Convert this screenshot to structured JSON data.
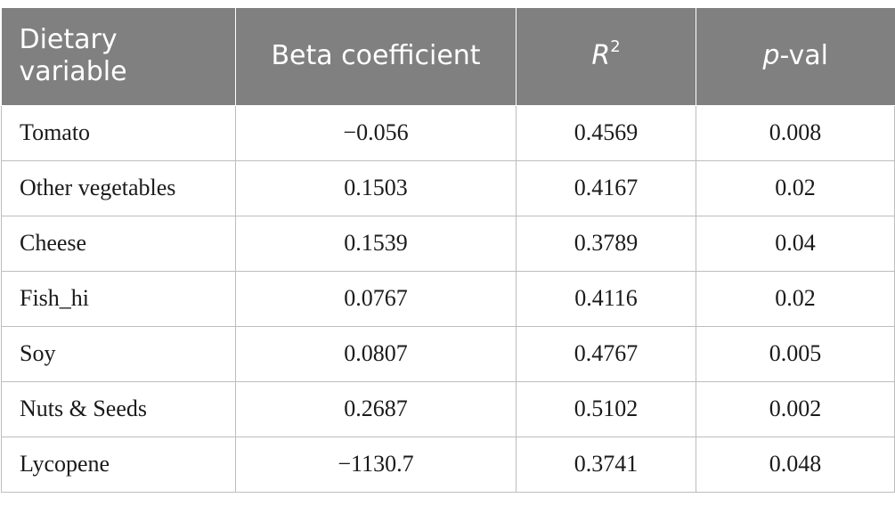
{
  "table": {
    "headers": {
      "dietary_variable": "Dietary variable",
      "beta_coefficient": "Beta coefficient",
      "r2_base": "R",
      "r2_sup": "2",
      "pval_italic": "p",
      "pval_rest": "-val"
    },
    "rows": [
      {
        "variable": "Tomato",
        "beta": "−0.056",
        "r2": "0.4569",
        "pval": "0.008"
      },
      {
        "variable": "Other vegetables",
        "beta": "0.1503",
        "r2": "0.4167",
        "pval": "0.02"
      },
      {
        "variable": "Cheese",
        "beta": "0.1539",
        "r2": "0.3789",
        "pval": "0.04"
      },
      {
        "variable": "Fish_hi",
        "beta": "0.0767",
        "r2": "0.4116",
        "pval": "0.02"
      },
      {
        "variable": "Soy",
        "beta": "0.0807",
        "r2": "0.4767",
        "pval": "0.005"
      },
      {
        "variable": "Nuts & Seeds",
        "beta": "0.2687",
        "r2": "0.5102",
        "pval": "0.002"
      },
      {
        "variable": "Lycopene",
        "beta": "−1130.7",
        "r2": "0.3741",
        "pval": "0.048"
      }
    ],
    "colors": {
      "header_bg": "#808080",
      "header_text": "#ffffff",
      "border": "#bdbdbd"
    }
  }
}
